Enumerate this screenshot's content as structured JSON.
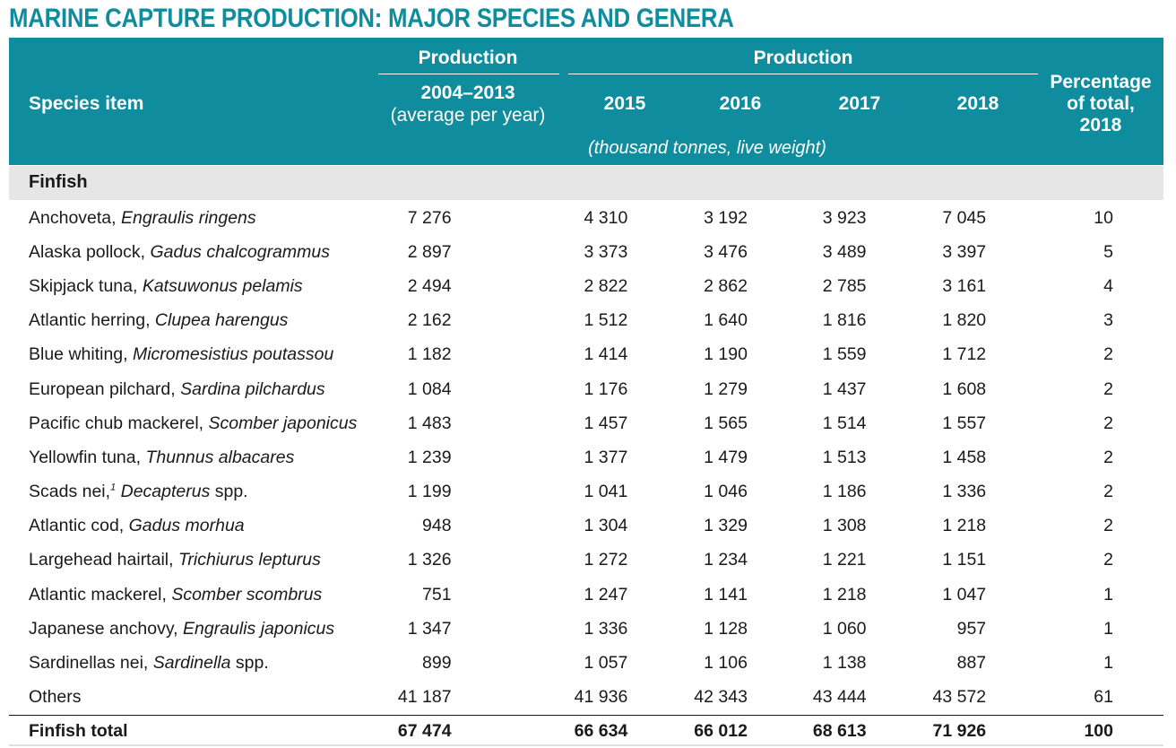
{
  "title": "MARINE CAPTURE PRODUCTION: MAJOR SPECIES AND GENERA",
  "header": {
    "species_item": "Species item",
    "production_left": "Production",
    "period_line1": "2004–2013",
    "period_line2": "(average per year)",
    "production_right": "Production",
    "years": [
      "2015",
      "2016",
      "2017",
      "2018"
    ],
    "pct_line1": "Percentage",
    "pct_line2": "of total,",
    "pct_line3": "2018",
    "units": "(thousand tonnes, live weight)"
  },
  "section": "Finfish",
  "rows": [
    {
      "common": "Anchoveta, ",
      "sci": "Engraulis ringens",
      "rest": "",
      "avg": "7 276",
      "y2015": "4 310",
      "y2016": "3 192",
      "y2017": "3 923",
      "y2018": "7 045",
      "pct": "10"
    },
    {
      "common": "Alaska pollock, ",
      "sci": "Gadus chalcogrammus",
      "rest": "",
      "avg": "2 897",
      "y2015": "3 373",
      "y2016": "3 476",
      "y2017": "3 489",
      "y2018": "3 397",
      "pct": "5"
    },
    {
      "common": "Skipjack tuna, ",
      "sci": "Katsuwonus pelamis",
      "rest": "",
      "avg": "2 494",
      "y2015": "2 822",
      "y2016": "2 862",
      "y2017": "2 785",
      "y2018": "3 161",
      "pct": "4"
    },
    {
      "common": "Atlantic herring, ",
      "sci": "Clupea harengus",
      "rest": "",
      "avg": "2 162",
      "y2015": "1 512",
      "y2016": "1 640",
      "y2017": "1 816",
      "y2018": "1 820",
      "pct": "3"
    },
    {
      "common": "Blue whiting, ",
      "sci": "Micromesistius poutassou",
      "rest": "",
      "avg": "1 182",
      "y2015": "1 414",
      "y2016": "1 190",
      "y2017": "1 559",
      "y2018": "1 712",
      "pct": "2"
    },
    {
      "common": "European pilchard, ",
      "sci": "Sardina pilchardus",
      "rest": "",
      "avg": "1 084",
      "y2015": "1 176",
      "y2016": "1 279",
      "y2017": "1 437",
      "y2018": "1 608",
      "pct": "2"
    },
    {
      "common": "Pacific chub mackerel, ",
      "sci": "Scomber japonicus",
      "rest": "",
      "avg": "1 483",
      "y2015": "1 457",
      "y2016": "1 565",
      "y2017": "1 514",
      "y2018": "1 557",
      "pct": "2"
    },
    {
      "common": "Yellowfin tuna, ",
      "sci": "Thunnus albacares",
      "rest": "",
      "avg": "1 239",
      "y2015": "1 377",
      "y2016": "1 479",
      "y2017": "1 513",
      "y2018": "1 458",
      "pct": "2"
    },
    {
      "common": "Scads nei,",
      "sup": "1",
      "sci": " Decapterus",
      "rest": " spp.",
      "avg": "1 199",
      "y2015": "1 041",
      "y2016": "1 046",
      "y2017": "1 186",
      "y2018": "1 336",
      "pct": "2"
    },
    {
      "common": "Atlantic cod, ",
      "sci": "Gadus morhua",
      "rest": "",
      "avg": "948",
      "y2015": "1 304",
      "y2016": "1 329",
      "y2017": "1 308",
      "y2018": "1 218",
      "pct": "2"
    },
    {
      "common": "Largehead hairtail, ",
      "sci": "Trichiurus lepturus",
      "rest": "",
      "avg": "1 326",
      "y2015": "1 272",
      "y2016": "1 234",
      "y2017": "1 221",
      "y2018": "1 151",
      "pct": "2"
    },
    {
      "common": "Atlantic mackerel, ",
      "sci": "Scomber scombrus",
      "rest": "",
      "avg": "751",
      "y2015": "1 247",
      "y2016": "1 141",
      "y2017": "1 218",
      "y2018": "1 047",
      "pct": "1"
    },
    {
      "common": "Japanese anchovy, ",
      "sci": "Engraulis japonicus",
      "rest": "",
      "avg": "1 347",
      "y2015": "1 336",
      "y2016": "1 128",
      "y2017": "1 060",
      "y2018": "957",
      "pct": "1"
    },
    {
      "common": "Sardinellas nei, ",
      "sci": "Sardinella",
      "rest": " spp.",
      "avg": "899",
      "y2015": "1 057",
      "y2016": "1 106",
      "y2017": "1 138",
      "y2018": "887",
      "pct": "1"
    },
    {
      "common": "Others",
      "sci": "",
      "rest": "",
      "avg": "41 187",
      "y2015": "41 936",
      "y2016": "42 343",
      "y2017": "43 444",
      "y2018": "43 572",
      "pct": "61"
    }
  ],
  "total": {
    "label": "Finfish total",
    "avg": "67 474",
    "y2015": "66 634",
    "y2016": "66 012",
    "y2017": "68 613",
    "y2018": "71 926",
    "pct": "100"
  },
  "colors": {
    "header_bg": "#0f8c9e",
    "title": "#0f8c9e",
    "section_bg": "#e6e6e6"
  }
}
